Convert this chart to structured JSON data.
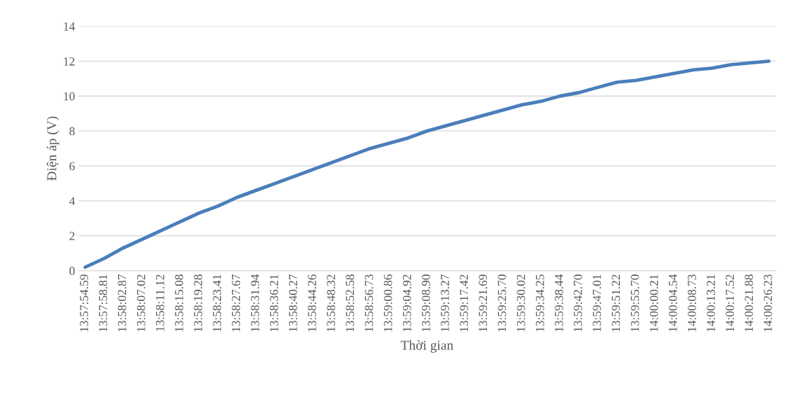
{
  "chart_data": {
    "type": "line",
    "xlabel": "Thời gian",
    "ylabel": "Điện áp (V)",
    "categories": [
      "13:57:54.59",
      "13:57:58.81",
      "13:58:02.87",
      "13:58:07.02",
      "13:58:11.12",
      "13:58:15.08",
      "13:58:19.28",
      "13:58:23.41",
      "13:58:27.67",
      "13:58:31.94",
      "13:58:36.21",
      "13:58:40.27",
      "13:58:44.26",
      "13:58:48.32",
      "13:58:52.58",
      "13:58:56.73",
      "13:59:00.86",
      "13:59:04.92",
      "13:59:08.90",
      "13:59:13.27",
      "13:59:17.42",
      "13:59:21.69",
      "13:59:25.70",
      "13:59:30.02",
      "13:59:34.25",
      "13:59:38.44",
      "13:59:42.70",
      "13:59:47.01",
      "13:59:51.22",
      "13:59:55.70",
      "14:00:00.21",
      "14:00:04.54",
      "14:00:08.73",
      "14:00:13.21",
      "14:00:17.52",
      "14:00:21.88",
      "14:00:26.23"
    ],
    "series": [
      {
        "color": "#4a7ebb",
        "values": [
          0.2,
          0.7,
          1.3,
          1.8,
          2.3,
          2.8,
          3.3,
          3.7,
          4.2,
          4.6,
          5.0,
          5.4,
          5.8,
          6.2,
          6.6,
          7.0,
          7.3,
          7.6,
          8.0,
          8.3,
          8.6,
          8.9,
          9.2,
          9.5,
          9.7,
          10.0,
          10.2,
          10.5,
          10.8,
          10.9,
          11.1,
          11.3,
          11.5,
          11.6,
          11.8,
          11.9,
          12.0
        ]
      }
    ],
    "ylim": [
      0,
      14
    ],
    "yticks": [
      0,
      2,
      4,
      6,
      8,
      10,
      12,
      14
    ],
    "grid": "y",
    "marker": "none",
    "line_style": "solid"
  }
}
